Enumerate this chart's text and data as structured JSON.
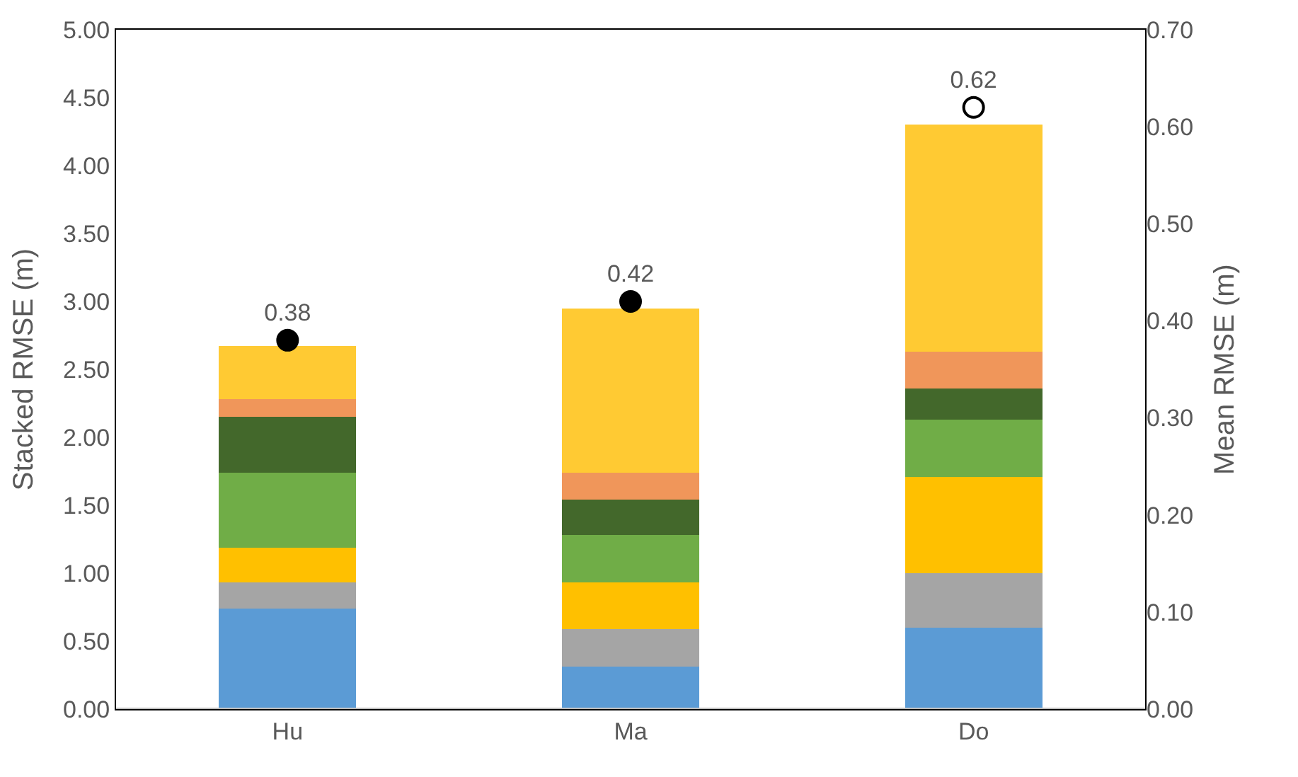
{
  "chart_data": {
    "type": "bar",
    "stacked": true,
    "categories": [
      "Hu",
      "Ma",
      "Do"
    ],
    "ylabel": "Stacked RMSE (m)",
    "y2label": "Mean RMSE (m)",
    "ylim": [
      0,
      5
    ],
    "yticks": [
      {
        "value": 0,
        "label": "0.00"
      },
      {
        "value": 0.5,
        "label": "0.50"
      },
      {
        "value": 1,
        "label": "1.00"
      },
      {
        "value": 1.5,
        "label": "1.50"
      },
      {
        "value": 2,
        "label": "2.00"
      },
      {
        "value": 2.5,
        "label": "2.50"
      },
      {
        "value": 3,
        "label": "3.00"
      },
      {
        "value": 3.5,
        "label": "3.50"
      },
      {
        "value": 4,
        "label": "4.00"
      },
      {
        "value": 4.5,
        "label": "4.50"
      },
      {
        "value": 5,
        "label": "5.00"
      }
    ],
    "y2lim": [
      0,
      0.7
    ],
    "y2ticks": [
      {
        "value": 0,
        "label": "0.00"
      },
      {
        "value": 0.1,
        "label": "0.10"
      },
      {
        "value": 0.2,
        "label": "0.20"
      },
      {
        "value": 0.3,
        "label": "0.30"
      },
      {
        "value": 0.4,
        "label": "0.40"
      },
      {
        "value": 0.5,
        "label": "0.50"
      },
      {
        "value": 0.6,
        "label": "0.60"
      },
      {
        "value": 0.7,
        "label": "0.70"
      }
    ],
    "series": [
      {
        "color": "#5b9bd5",
        "values": [
          0.74,
          0.31,
          0.6
        ]
      },
      {
        "color": "#a5a5a5",
        "values": [
          0.19,
          0.28,
          0.4
        ]
      },
      {
        "color": "#ffc000",
        "values": [
          0.26,
          0.34,
          0.71
        ]
      },
      {
        "color": "#70ad47",
        "values": [
          0.55,
          0.35,
          0.42
        ]
      },
      {
        "color": "#43682b",
        "values": [
          0.41,
          0.26,
          0.23
        ]
      },
      {
        "color": "#f0965a",
        "values": [
          0.13,
          0.2,
          0.27
        ]
      },
      {
        "color": "#ffca33",
        "values": [
          0.39,
          1.21,
          1.67
        ]
      },
      {
        "type": "scatter",
        "axis": "y2",
        "color": "#000000",
        "colors": [
          "#000000",
          "#000000",
          "#ffffff"
        ],
        "values": [
          0.38,
          0.42,
          0.62
        ],
        "value_labels": [
          "0.38",
          "0.42",
          "0.62"
        ]
      }
    ]
  }
}
